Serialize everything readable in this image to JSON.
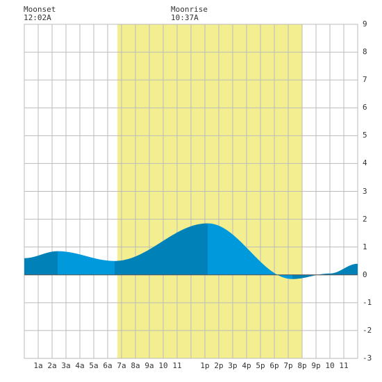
{
  "annotations": {
    "moonset_label": "Moonset",
    "moonset_time": "12:02A",
    "moonrise_label": "Moonrise",
    "moonrise_time": "10:37A"
  },
  "chart_data": {
    "type": "area",
    "title": "",
    "xlabel": "",
    "ylabel": "",
    "xlim": [
      0,
      24
    ],
    "ylim": [
      -3,
      9
    ],
    "grid": true,
    "x_tick_labels": [
      "1a",
      "2a",
      "3a",
      "4a",
      "5a",
      "6a",
      "7a",
      "8a",
      "9a",
      "10",
      "11",
      "1p",
      "2p",
      "3p",
      "4p",
      "5p",
      "6p",
      "7p",
      "8p",
      "9p",
      "10",
      "11"
    ],
    "x_tick_hours": [
      1,
      2,
      3,
      4,
      5,
      6,
      7,
      8,
      9,
      10,
      11,
      13,
      14,
      15,
      16,
      17,
      18,
      19,
      20,
      21,
      22,
      23
    ],
    "y_tick_labels": [
      "9",
      "8",
      "7",
      "6",
      "5",
      "4",
      "3",
      "2",
      "1",
      "0",
      "-1",
      "-2",
      "-3"
    ],
    "y_tick_values": [
      9,
      8,
      7,
      6,
      5,
      4,
      3,
      2,
      1,
      0,
      -1,
      -2,
      -3
    ],
    "daylight_band": {
      "start_hour": 6.7,
      "end_hour": 20.0
    },
    "tide_series": {
      "x": [
        0,
        2.4,
        6.5,
        13.2,
        19.3,
        22.0,
        24
      ],
      "y": [
        0.6,
        0.85,
        0.5,
        1.85,
        -0.15,
        0.05,
        0.4
      ]
    },
    "shade_breaks": [
      0,
      2.4,
      6.5,
      13.2,
      19.3,
      24
    ],
    "colors": {
      "tide_dark": "#0081B8",
      "tide_light": "#0099DB",
      "daylight": "#F3EE8F",
      "grid": "#BBBBBB",
      "zero_line": "#555555"
    }
  }
}
